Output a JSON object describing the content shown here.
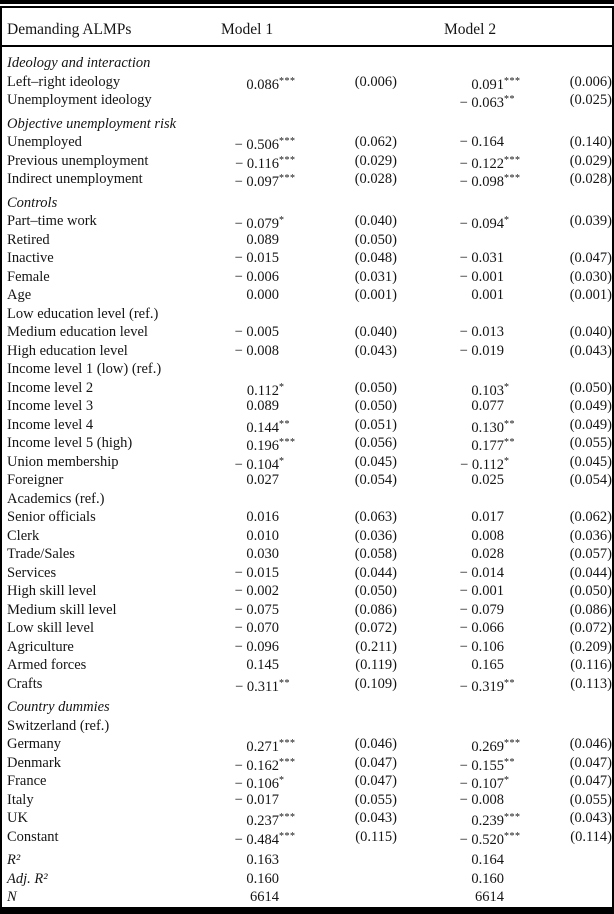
{
  "header": {
    "col_label": "Demanding ALMPs",
    "model1": "Model 1",
    "model2": "Model 2"
  },
  "rows": [
    {
      "type": "section",
      "label": "Ideology and interaction"
    },
    {
      "type": "data",
      "label": "Left–right ideology",
      "m1": "0.086",
      "m1s": "***",
      "se1": "(0.006)",
      "m2": "0.091",
      "m2s": "***",
      "se2": "(0.006)"
    },
    {
      "type": "data",
      "label": "Unemployment ideology",
      "m2": "− 0.063",
      "m2s": "**",
      "se2": "(0.025)"
    },
    {
      "type": "section",
      "label": "Objective unemployment risk"
    },
    {
      "type": "data",
      "label": "Unemployed",
      "m1": "− 0.506",
      "m1s": "***",
      "se1": "(0.062)",
      "m2": "− 0.164",
      "se2": "(0.140)"
    },
    {
      "type": "data",
      "label": "Previous unemployment",
      "m1": "− 0.116",
      "m1s": "***",
      "se1": "(0.029)",
      "m2": "− 0.122",
      "m2s": "***",
      "se2": "(0.029)"
    },
    {
      "type": "data",
      "label": "Indirect unemployment",
      "m1": "− 0.097",
      "m1s": "***",
      "se1": "(0.028)",
      "m2": "− 0.098",
      "m2s": "***",
      "se2": "(0.028)"
    },
    {
      "type": "section",
      "label": "Controls"
    },
    {
      "type": "data",
      "label": "Part–time work",
      "m1": "− 0.079",
      "m1s": "*",
      "se1": "(0.040)",
      "m2": "− 0.094",
      "m2s": "*",
      "se2": "(0.039)"
    },
    {
      "type": "data",
      "label": "Retired",
      "m1": "0.089",
      "se1": "(0.050)"
    },
    {
      "type": "data",
      "label": "Inactive",
      "m1": "− 0.015",
      "se1": "(0.048)",
      "m2": "− 0.031",
      "se2": "(0.047)"
    },
    {
      "type": "data",
      "label": "Female",
      "m1": "− 0.006",
      "se1": "(0.031)",
      "m2": "− 0.001",
      "se2": "(0.030)"
    },
    {
      "type": "data",
      "label": "Age",
      "m1": "0.000",
      "se1": "(0.001)",
      "m2": "0.001",
      "se2": "(0.001)"
    },
    {
      "type": "ref",
      "label": "Low education level (ref.)"
    },
    {
      "type": "data",
      "label": "Medium education level",
      "m1": "− 0.005",
      "se1": "(0.040)",
      "m2": "− 0.013",
      "se2": "(0.040)"
    },
    {
      "type": "data",
      "label": "High education level",
      "m1": "− 0.008",
      "se1": "(0.043)",
      "m2": "− 0.019",
      "se2": "(0.043)"
    },
    {
      "type": "ref",
      "label": "Income level 1 (low) (ref.)"
    },
    {
      "type": "data",
      "label": "Income level 2",
      "m1": "0.112",
      "m1s": "*",
      "se1": "(0.050)",
      "m2": "0.103",
      "m2s": "*",
      "se2": "(0.050)"
    },
    {
      "type": "data",
      "label": "Income level 3",
      "m1": "0.089",
      "se1": "(0.050)",
      "m2": "0.077",
      "se2": "(0.049)"
    },
    {
      "type": "data",
      "label": "Income level 4",
      "m1": "0.144",
      "m1s": "**",
      "se1": "(0.051)",
      "m2": "0.130",
      "m2s": "**",
      "se2": "(0.049)"
    },
    {
      "type": "data",
      "label": "Income level 5 (high)",
      "m1": "0.196",
      "m1s": "***",
      "se1": "(0.056)",
      "m2": "0.177",
      "m2s": "**",
      "se2": "(0.055)"
    },
    {
      "type": "data",
      "label": "Union membership",
      "m1": "− 0.104",
      "m1s": "*",
      "se1": "(0.045)",
      "m2": "− 0.112",
      "m2s": "*",
      "se2": "(0.045)"
    },
    {
      "type": "data",
      "label": "Foreigner",
      "m1": "0.027",
      "se1": "(0.054)",
      "m2": "0.025",
      "se2": "(0.054)"
    },
    {
      "type": "ref",
      "label": "Academics (ref.)"
    },
    {
      "type": "data",
      "label": "Senior officials",
      "m1": "0.016",
      "se1": "(0.063)",
      "m2": "0.017",
      "se2": "(0.062)"
    },
    {
      "type": "data",
      "label": "Clerk",
      "m1": "0.010",
      "se1": "(0.036)",
      "m2": "0.008",
      "se2": "(0.036)"
    },
    {
      "type": "data",
      "label": "Trade/Sales",
      "m1": "0.030",
      "se1": "(0.058)",
      "m2": "0.028",
      "se2": "(0.057)"
    },
    {
      "type": "data",
      "label": "Services",
      "m1": "− 0.015",
      "se1": "(0.044)",
      "m2": "− 0.014",
      "se2": "(0.044)"
    },
    {
      "type": "data",
      "label": "High skill level",
      "m1": "− 0.002",
      "se1": "(0.050)",
      "m2": "− 0.001",
      "se2": "(0.050)"
    },
    {
      "type": "data",
      "label": "Medium skill level",
      "m1": "− 0.075",
      "se1": "(0.086)",
      "m2": "− 0.079",
      "se2": "(0.086)"
    },
    {
      "type": "data",
      "label": "Low skill level",
      "m1": "− 0.070",
      "se1": "(0.072)",
      "m2": "− 0.066",
      "se2": "(0.072)"
    },
    {
      "type": "data",
      "label": "Agriculture",
      "m1": "− 0.096",
      "se1": "(0.211)",
      "m2": "− 0.106",
      "se2": "(0.209)"
    },
    {
      "type": "data",
      "label": "Armed forces",
      "m1": "0.145",
      "se1": "(0.119)",
      "m2": "0.165",
      "se2": "(0.116)"
    },
    {
      "type": "data",
      "label": "Crafts",
      "m1": "− 0.311",
      "m1s": "**",
      "se1": "(0.109)",
      "m2": "− 0.319",
      "m2s": "**",
      "se2": "(0.113)"
    },
    {
      "type": "section",
      "label": "Country dummies"
    },
    {
      "type": "ref",
      "label": "Switzerland (ref.)"
    },
    {
      "type": "data",
      "label": "Germany",
      "m1": "0.271",
      "m1s": "***",
      "se1": "(0.046)",
      "m2": "0.269",
      "m2s": "***",
      "se2": "(0.046)"
    },
    {
      "type": "data",
      "label": "Denmark",
      "m1": "− 0.162",
      "m1s": "***",
      "se1": "(0.047)",
      "m2": "− 0.155",
      "m2s": "**",
      "se2": "(0.047)"
    },
    {
      "type": "data",
      "label": "France",
      "m1": "− 0.106",
      "m1s": "*",
      "se1": "(0.047)",
      "m2": "− 0.107",
      "m2s": "*",
      "se2": "(0.047)"
    },
    {
      "type": "data",
      "label": "Italy",
      "m1": "− 0.017",
      "se1": "(0.055)",
      "m2": "− 0.008",
      "se2": "(0.055)"
    },
    {
      "type": "data",
      "label": "UK",
      "m1": "0.237",
      "m1s": "***",
      "se1": "(0.043)",
      "m2": "0.239",
      "m2s": "***",
      "se2": "(0.043)"
    },
    {
      "type": "data",
      "label": "Constant",
      "m1": "− 0.484",
      "m1s": "***",
      "se1": "(0.115)",
      "m2": "− 0.520",
      "m2s": "***",
      "se2": "(0.114)"
    },
    {
      "type": "stat",
      "label": "R²",
      "m1": "0.163",
      "m2": "0.164"
    },
    {
      "type": "stat",
      "label": "Adj. R²",
      "m1": "0.160",
      "m2": "0.160"
    },
    {
      "type": "stat",
      "label": "N",
      "m1": "6614",
      "m2": "6614"
    }
  ],
  "colors": {
    "text": "#141414",
    "rule": "#000000",
    "background": "#ffffff"
  }
}
